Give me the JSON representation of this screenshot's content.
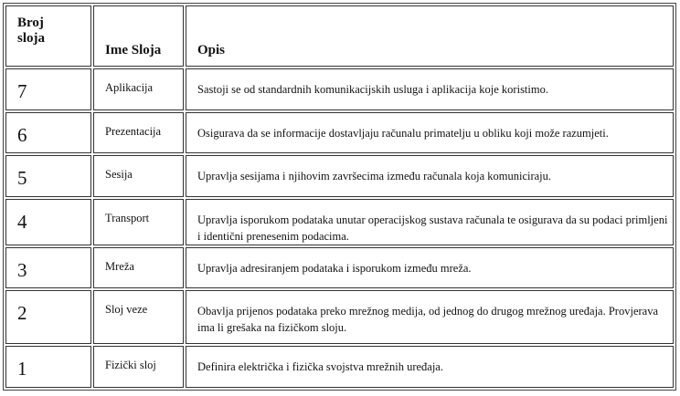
{
  "headers": [
    "Broj sloja",
    "Ime Sloja",
    "Opis"
  ],
  "rows": [
    {
      "num": "7",
      "name": "Aplikacija",
      "desc": "Sastoji se od standardnih komunikacijskih usluga i aplikacija koje koristimo."
    },
    {
      "num": "6",
      "name": "Prezentacija",
      "desc": "Osigurava da se informacije dostavljaju računalu primatelju u obliku koji može razumjeti."
    },
    {
      "num": "5",
      "name": "Sesija",
      "desc": "Upravlja sesijama i njihovim završecima između računala koja komuniciraju."
    },
    {
      "num": "4",
      "name": "Transport",
      "desc": "Upravlja isporukom podataka unutar operacijskog sustava računala te osigurava da su podaci primljeni i identični prenesenim podacima."
    },
    {
      "num": "3",
      "name": "Mreža",
      "desc": "Upravlja adresiranjem podataka i isporukom između mreža."
    },
    {
      "num": "2",
      "name": "Sloj veze",
      "desc": "Obavlja prijenos podataka preko mrežnog medija, od jednog do drugog mrežnog uređaja. Provjerava ima li grešaka na fizičkom sloju."
    },
    {
      "num": "1",
      "name": "Fizički sloj",
      "desc": "Definira električka i fizička svojstva mrežnih uređaja."
    }
  ]
}
